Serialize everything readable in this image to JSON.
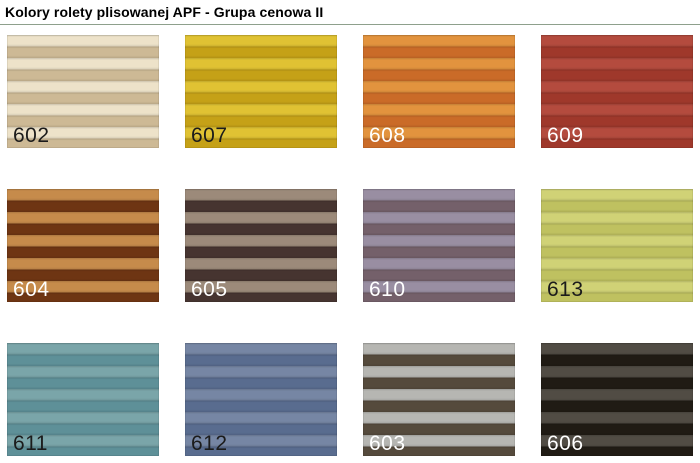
{
  "page": {
    "title": "Kolory rolety plisowanej APF - Grupa cenowa II",
    "background_color": "#ffffff",
    "divider_color": "#8EA08C"
  },
  "swatches": [
    {
      "code": "602",
      "stripe_light": "#EDE2C9",
      "stripe_dark": "#CDB995",
      "label_color": "#1b1b1b"
    },
    {
      "code": "607",
      "stripe_light": "#E0C233",
      "stripe_dark": "#C5A117",
      "label_color": "#1b1b1b"
    },
    {
      "code": "608",
      "stripe_light": "#E2933E",
      "stripe_dark": "#CA6B28",
      "label_color": "#ffffff"
    },
    {
      "code": "609",
      "stripe_light": "#B44B3E",
      "stripe_dark": "#9F382B",
      "label_color": "#ffffff"
    },
    {
      "code": "604",
      "stripe_light": "#C68B4B",
      "stripe_dark": "#6E3513",
      "label_color": "#ffffff"
    },
    {
      "code": "605",
      "stripe_light": "#9C8A7A",
      "stripe_dark": "#463430",
      "label_color": "#ffffff"
    },
    {
      "code": "610",
      "stripe_light": "#998EA2",
      "stripe_dark": "#74606A",
      "label_color": "#ffffff"
    },
    {
      "code": "613",
      "stripe_light": "#D0D276",
      "stripe_dark": "#BFC160",
      "label_color": "#1b1b1b"
    },
    {
      "code": "611",
      "stripe_light": "#7AA5A9",
      "stripe_dark": "#5E9098",
      "label_color": "#1b1b1b"
    },
    {
      "code": "612",
      "stripe_light": "#7686A4",
      "stripe_dark": "#596C8F",
      "label_color": "#1b1b1b"
    },
    {
      "code": "603",
      "stripe_light": "#B6B6B2",
      "stripe_dark": "#554A3C",
      "label_color": "#ffffff"
    },
    {
      "code": "606",
      "stripe_light": "#514C44",
      "stripe_dark": "#201B14",
      "label_color": "#ffffff"
    }
  ]
}
